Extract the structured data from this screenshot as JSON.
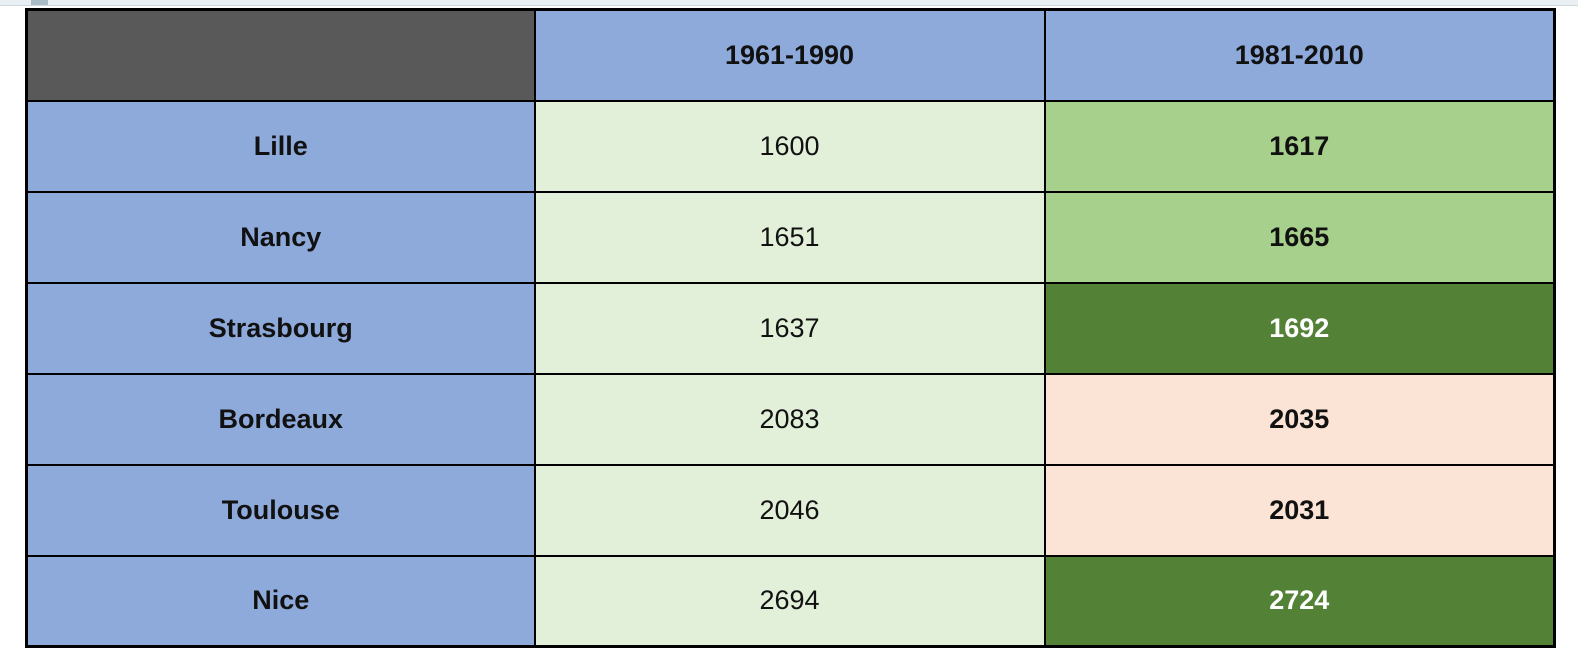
{
  "top_strip": {
    "strip_color": "#e9eff2",
    "strip_tab_color": "#a9bcc6"
  },
  "table": {
    "columns": [
      "",
      "1961-1990",
      "1981-2010"
    ],
    "rows": [
      {
        "city": "Lille",
        "v1961_1990": "1600",
        "v1981_2010": "1617",
        "highlight": "medium-green"
      },
      {
        "city": "Nancy",
        "v1961_1990": "1651",
        "v1981_2010": "1665",
        "highlight": "medium-green"
      },
      {
        "city": "Strasbourg",
        "v1961_1990": "1637",
        "v1981_2010": "1692",
        "highlight": "dark-green"
      },
      {
        "city": "Bordeaux",
        "v1961_1990": "2083",
        "v1981_2010": "2035",
        "highlight": "pink"
      },
      {
        "city": "Toulouse",
        "v1961_1990": "2046",
        "v1981_2010": "2031",
        "highlight": "pink"
      },
      {
        "city": "Nice",
        "v1961_1990": "2694",
        "v1981_2010": "2724",
        "highlight": "dark-green"
      }
    ],
    "colors": {
      "header_blue": "#8EAADB",
      "corner_gray": "#595959",
      "light_green": "#E2EFD9",
      "medium_green": "#A8D08D",
      "dark_green": "#538135",
      "dark_green_text": "#FFFFFF",
      "pink": "#FBE4D5",
      "border": "#000000"
    }
  },
  "chart_data": {
    "type": "table",
    "title": "",
    "columns": [
      "",
      "1961-1990",
      "1981-2010"
    ],
    "rows": [
      [
        "Lille",
        1600,
        1617
      ],
      [
        "Nancy",
        1651,
        1665
      ],
      [
        "Strasbourg",
        1637,
        1692
      ],
      [
        "Bordeaux",
        2083,
        2035
      ],
      [
        "Toulouse",
        2046,
        2031
      ],
      [
        "Nice",
        2694,
        2724
      ]
    ],
    "cell_highlights": {
      "1981-2010": [
        "medium-green",
        "medium-green",
        "dark-green",
        "pink",
        "pink",
        "dark-green"
      ]
    }
  }
}
